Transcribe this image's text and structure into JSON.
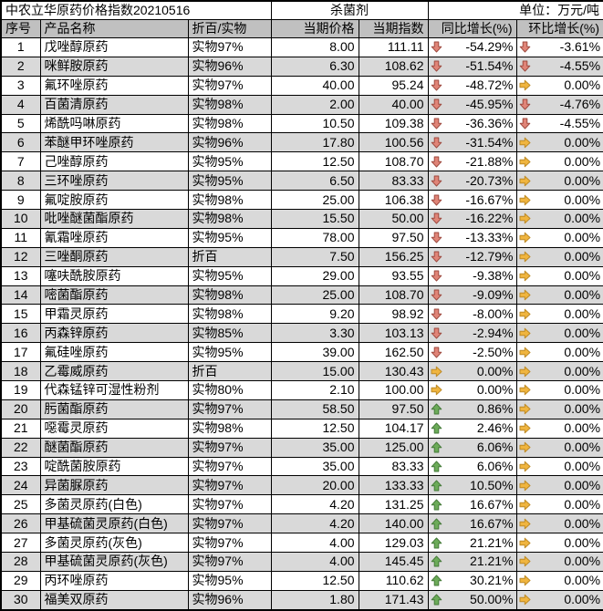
{
  "header": {
    "title": "中农立华原药价格指数20210516",
    "category": "杀菌剂",
    "unit": "单位：万元/吨"
  },
  "columns": [
    "序号",
    "产品名称",
    "折百/实物",
    "当期价格",
    "当期指数",
    "同比增长(%)",
    "环比增长(%)"
  ],
  "colors": {
    "header_fill": "#c0c0c0",
    "alt_row_fill": "#d9d9d9",
    "border": "#000000",
    "arrow_down_fill": "#e08477",
    "arrow_down_stroke": "#9e4a3f",
    "arrow_flat_fill": "#f0b53f",
    "arrow_flat_stroke": "#bd8a26",
    "arrow_up_fill": "#6cab59",
    "arrow_up_stroke": "#457a39"
  },
  "icons": {
    "down": "down-arrow-icon",
    "flat": "right-arrow-icon",
    "up": "up-arrow-icon"
  },
  "rows": [
    {
      "no": 1,
      "name": "戊唑醇原药",
      "spec": "实物97%",
      "price": "8.00",
      "index": "111.11",
      "yoy": {
        "dir": "down",
        "value": "-54.29%"
      },
      "mom": {
        "dir": "down",
        "value": "-3.61%"
      }
    },
    {
      "no": 2,
      "name": "咪鲜胺原药",
      "spec": "实物96%",
      "price": "6.30",
      "index": "108.62",
      "yoy": {
        "dir": "down",
        "value": "-51.54%"
      },
      "mom": {
        "dir": "down",
        "value": "-4.55%"
      }
    },
    {
      "no": 3,
      "name": "氟环唑原药",
      "spec": "实物97%",
      "price": "40.00",
      "index": "95.24",
      "yoy": {
        "dir": "down",
        "value": "-48.72%"
      },
      "mom": {
        "dir": "flat",
        "value": "0.00%"
      }
    },
    {
      "no": 4,
      "name": "百菌清原药",
      "spec": "实物98%",
      "price": "2.00",
      "index": "40.00",
      "yoy": {
        "dir": "down",
        "value": "-45.95%"
      },
      "mom": {
        "dir": "down",
        "value": "-4.76%"
      }
    },
    {
      "no": 5,
      "name": "烯酰吗啉原药",
      "spec": "实物98%",
      "price": "10.50",
      "index": "109.38",
      "yoy": {
        "dir": "down",
        "value": "-36.36%"
      },
      "mom": {
        "dir": "down",
        "value": "-4.55%"
      }
    },
    {
      "no": 6,
      "name": "苯醚甲环唑原药",
      "spec": "实物96%",
      "price": "17.80",
      "index": "100.56",
      "yoy": {
        "dir": "down",
        "value": "-31.54%"
      },
      "mom": {
        "dir": "flat",
        "value": "0.00%"
      }
    },
    {
      "no": 7,
      "name": "己唑醇原药",
      "spec": "实物95%",
      "price": "12.50",
      "index": "108.70",
      "yoy": {
        "dir": "down",
        "value": "-21.88%"
      },
      "mom": {
        "dir": "flat",
        "value": "0.00%"
      }
    },
    {
      "no": 8,
      "name": "三环唑原药",
      "spec": "实物95%",
      "price": "6.50",
      "index": "83.33",
      "yoy": {
        "dir": "down",
        "value": "-20.73%"
      },
      "mom": {
        "dir": "flat",
        "value": "0.00%"
      }
    },
    {
      "no": 9,
      "name": "氟啶胺原药",
      "spec": "实物98%",
      "price": "25.00",
      "index": "106.38",
      "yoy": {
        "dir": "down",
        "value": "-16.67%"
      },
      "mom": {
        "dir": "flat",
        "value": "0.00%"
      }
    },
    {
      "no": 10,
      "name": "吡唑醚菌酯原药",
      "spec": "实物98%",
      "price": "15.50",
      "index": "50.00",
      "yoy": {
        "dir": "down",
        "value": "-16.22%"
      },
      "mom": {
        "dir": "flat",
        "value": "0.00%"
      }
    },
    {
      "no": 11,
      "name": "氰霜唑原药",
      "spec": "实物95%",
      "price": "78.00",
      "index": "97.50",
      "yoy": {
        "dir": "down",
        "value": "-13.33%"
      },
      "mom": {
        "dir": "flat",
        "value": "0.00%"
      }
    },
    {
      "no": 12,
      "name": "三唑酮原药",
      "spec": "折百",
      "price": "7.50",
      "index": "156.25",
      "yoy": {
        "dir": "down",
        "value": "-12.79%"
      },
      "mom": {
        "dir": "flat",
        "value": "0.00%"
      }
    },
    {
      "no": 13,
      "name": "噻呋酰胺原药",
      "spec": "实物95%",
      "price": "29.00",
      "index": "93.55",
      "yoy": {
        "dir": "down",
        "value": "-9.38%"
      },
      "mom": {
        "dir": "flat",
        "value": "0.00%"
      }
    },
    {
      "no": 14,
      "name": "嘧菌酯原药",
      "spec": "实物98%",
      "price": "25.00",
      "index": "108.70",
      "yoy": {
        "dir": "down",
        "value": "-9.09%"
      },
      "mom": {
        "dir": "flat",
        "value": "0.00%"
      }
    },
    {
      "no": 15,
      "name": "甲霜灵原药",
      "spec": "实物98%",
      "price": "9.20",
      "index": "98.92",
      "yoy": {
        "dir": "down",
        "value": "-8.00%"
      },
      "mom": {
        "dir": "flat",
        "value": "0.00%"
      }
    },
    {
      "no": 16,
      "name": "丙森锌原药",
      "spec": "实物85%",
      "price": "3.30",
      "index": "103.13",
      "yoy": {
        "dir": "down",
        "value": "-2.94%"
      },
      "mom": {
        "dir": "flat",
        "value": "0.00%"
      }
    },
    {
      "no": 17,
      "name": "氟硅唑原药",
      "spec": "实物95%",
      "price": "39.00",
      "index": "162.50",
      "yoy": {
        "dir": "down",
        "value": "-2.50%"
      },
      "mom": {
        "dir": "flat",
        "value": "0.00%"
      }
    },
    {
      "no": 18,
      "name": "乙霉威原药",
      "spec": "折百",
      "price": "15.00",
      "index": "130.43",
      "yoy": {
        "dir": "flat",
        "value": "0.00%"
      },
      "mom": {
        "dir": "flat",
        "value": "0.00%"
      }
    },
    {
      "no": 19,
      "name": "代森锰锌可湿性粉剂",
      "spec": "实物80%",
      "price": "2.10",
      "index": "100.00",
      "yoy": {
        "dir": "flat",
        "value": "0.00%"
      },
      "mom": {
        "dir": "flat",
        "value": "0.00%"
      }
    },
    {
      "no": 20,
      "name": "肟菌酯原药",
      "spec": "实物97%",
      "price": "58.50",
      "index": "97.50",
      "yoy": {
        "dir": "up",
        "value": "0.86%"
      },
      "mom": {
        "dir": "flat",
        "value": "0.00%"
      }
    },
    {
      "no": 21,
      "name": "噁霉灵原药",
      "spec": "实物98%",
      "price": "12.50",
      "index": "104.17",
      "yoy": {
        "dir": "up",
        "value": "2.46%"
      },
      "mom": {
        "dir": "flat",
        "value": "0.00%"
      }
    },
    {
      "no": 22,
      "name": "醚菌酯原药",
      "spec": "实物97%",
      "price": "35.00",
      "index": "125.00",
      "yoy": {
        "dir": "up",
        "value": "6.06%"
      },
      "mom": {
        "dir": "flat",
        "value": "0.00%"
      }
    },
    {
      "no": 23,
      "name": "啶酰菌胺原药",
      "spec": "实物97%",
      "price": "35.00",
      "index": "83.33",
      "yoy": {
        "dir": "up",
        "value": "6.06%"
      },
      "mom": {
        "dir": "flat",
        "value": "0.00%"
      }
    },
    {
      "no": 24,
      "name": "异菌脲原药",
      "spec": "实物97%",
      "price": "20.00",
      "index": "133.33",
      "yoy": {
        "dir": "up",
        "value": "10.50%"
      },
      "mom": {
        "dir": "flat",
        "value": "0.00%"
      }
    },
    {
      "no": 25,
      "name": "多菌灵原药(白色)",
      "spec": "实物97%",
      "price": "4.20",
      "index": "131.25",
      "yoy": {
        "dir": "up",
        "value": "16.67%"
      },
      "mom": {
        "dir": "flat",
        "value": "0.00%"
      }
    },
    {
      "no": 26,
      "name": "甲基硫菌灵原药(白色)",
      "spec": "实物97%",
      "price": "4.20",
      "index": "140.00",
      "yoy": {
        "dir": "up",
        "value": "16.67%"
      },
      "mom": {
        "dir": "flat",
        "value": "0.00%"
      }
    },
    {
      "no": 27,
      "name": "多菌灵原药(灰色)",
      "spec": "实物97%",
      "price": "4.00",
      "index": "129.03",
      "yoy": {
        "dir": "up",
        "value": "21.21%"
      },
      "mom": {
        "dir": "flat",
        "value": "0.00%"
      }
    },
    {
      "no": 28,
      "name": "甲基硫菌灵原药(灰色)",
      "spec": "实物97%",
      "price": "4.00",
      "index": "145.45",
      "yoy": {
        "dir": "up",
        "value": "21.21%"
      },
      "mom": {
        "dir": "flat",
        "value": "0.00%"
      }
    },
    {
      "no": 29,
      "name": "丙环唑原药",
      "spec": "实物95%",
      "price": "12.50",
      "index": "110.62",
      "yoy": {
        "dir": "up",
        "value": "30.21%"
      },
      "mom": {
        "dir": "flat",
        "value": "0.00%"
      }
    },
    {
      "no": 30,
      "name": "福美双原药",
      "spec": "实物96%",
      "price": "1.80",
      "index": "171.43",
      "yoy": {
        "dir": "up",
        "value": "50.00%"
      },
      "mom": {
        "dir": "flat",
        "value": "0.00%"
      }
    }
  ]
}
